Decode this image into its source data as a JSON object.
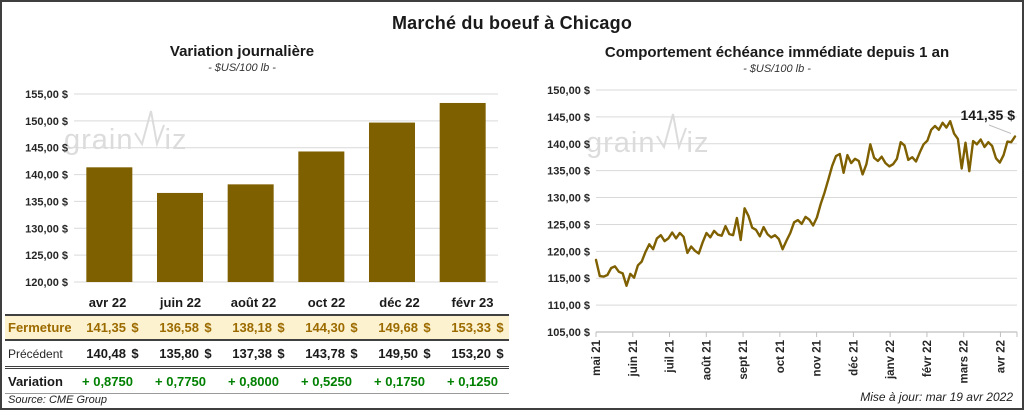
{
  "page": {
    "title": "Marché du boeuf à Chicago",
    "source": "Source: CME Group",
    "updated": "Mise à jour: mar 19 avr 2022",
    "watermark_part1": "grain",
    "watermark_part2": "iz"
  },
  "colors": {
    "brand_gold": "#7f6000",
    "fermeture_text": "#9c6b00",
    "fermeture_bg": "#fcf2cf",
    "variation_green": "#008000",
    "gridline": "#d9d9d9",
    "axis_line": "#bfbfbf",
    "tick_label": "#262626",
    "annotation_leader": "#bfbfbf",
    "watermark": "#dcdcdc"
  },
  "table": {
    "columns": [
      "avr 22",
      "juin 22",
      "août 22",
      "oct 22",
      "déc 22",
      "févr 23"
    ],
    "rows": [
      {
        "key": "fermeture",
        "label": "Fermeture",
        "suffix": "$",
        "values": [
          "141,35",
          "136,58",
          "138,18",
          "144,30",
          "149,68",
          "153,33"
        ]
      },
      {
        "key": "precedent",
        "label": "Précédent",
        "suffix": "$",
        "values": [
          "140,48",
          "135,80",
          "137,38",
          "143,78",
          "149,50",
          "153,20"
        ]
      },
      {
        "key": "variation",
        "label": "Variation",
        "suffix": "",
        "values": [
          "+ 0,8750",
          "+ 0,7750",
          "+ 0,8000",
          "+ 0,5250",
          "+ 0,1750",
          "+ 0,1250"
        ]
      }
    ]
  },
  "chart_data": [
    {
      "type": "bar",
      "title": "Variation  journalière",
      "subtitle": "- $US/100 lb -",
      "categories": [
        "avr 22",
        "juin 22",
        "août 22",
        "oct 22",
        "déc 22",
        "févr 23"
      ],
      "values": [
        141.35,
        136.58,
        138.18,
        144.3,
        149.68,
        153.33
      ],
      "ylabel_suffix": " $",
      "ylim": [
        120,
        155
      ],
      "ytick_step": 5,
      "grid": true,
      "bar_color": "#7f6000"
    },
    {
      "type": "line",
      "title": "Comportement  échéance immédiate depuis 1 an",
      "subtitle": "- $US/100 lb -",
      "x_ticks": [
        "mai 21",
        "juin 21",
        "juil 21",
        "août 21",
        "sept 21",
        "oct 21",
        "nov 21",
        "déc 21",
        "janv 22",
        "févr 22",
        "mars 22",
        "avr 22"
      ],
      "values": [
        118.4,
        115.4,
        115.3,
        115.6,
        116.9,
        117.2,
        116.2,
        115.9,
        113.6,
        115.8,
        115.1,
        117.4,
        118.1,
        119.9,
        121.3,
        120.4,
        122.4,
        123.0,
        121.9,
        122.4,
        123.5,
        122.4,
        123.4,
        122.7,
        119.7,
        120.9,
        120.1,
        119.6,
        121.7,
        123.4,
        122.6,
        123.8,
        123.1,
        122.9,
        124.7,
        123.2,
        123.0,
        126.2,
        122.1,
        128.0,
        126.6,
        124.4,
        124.0,
        122.8,
        124.5,
        123.2,
        122.6,
        123.0,
        122.3,
        120.4,
        122.0,
        123.4,
        125.4,
        125.8,
        125.1,
        126.4,
        125.9,
        124.8,
        126.3,
        128.8,
        130.9,
        133.4,
        135.9,
        137.7,
        138.1,
        134.6,
        137.9,
        136.4,
        137.2,
        136.8,
        134.3,
        136.2,
        139.9,
        137.4,
        136.8,
        137.6,
        136.4,
        135.8,
        136.2,
        137.2,
        140.3,
        139.7,
        137.0,
        137.5,
        136.7,
        138.4,
        139.9,
        140.6,
        142.6,
        143.3,
        142.6,
        143.9,
        143.0,
        144.2,
        141.9,
        140.9,
        135.4,
        140.2,
        134.9,
        140.5,
        139.9,
        140.8,
        139.4,
        140.3,
        139.6,
        137.3,
        136.5,
        137.9,
        140.4,
        140.3,
        141.35
      ],
      "last_value": 141.35,
      "annotation": "141,35 $",
      "ylabel_suffix": " $",
      "ylim": [
        105,
        150
      ],
      "ytick_step": 5,
      "grid": true,
      "line_color": "#7f6000"
    }
  ]
}
